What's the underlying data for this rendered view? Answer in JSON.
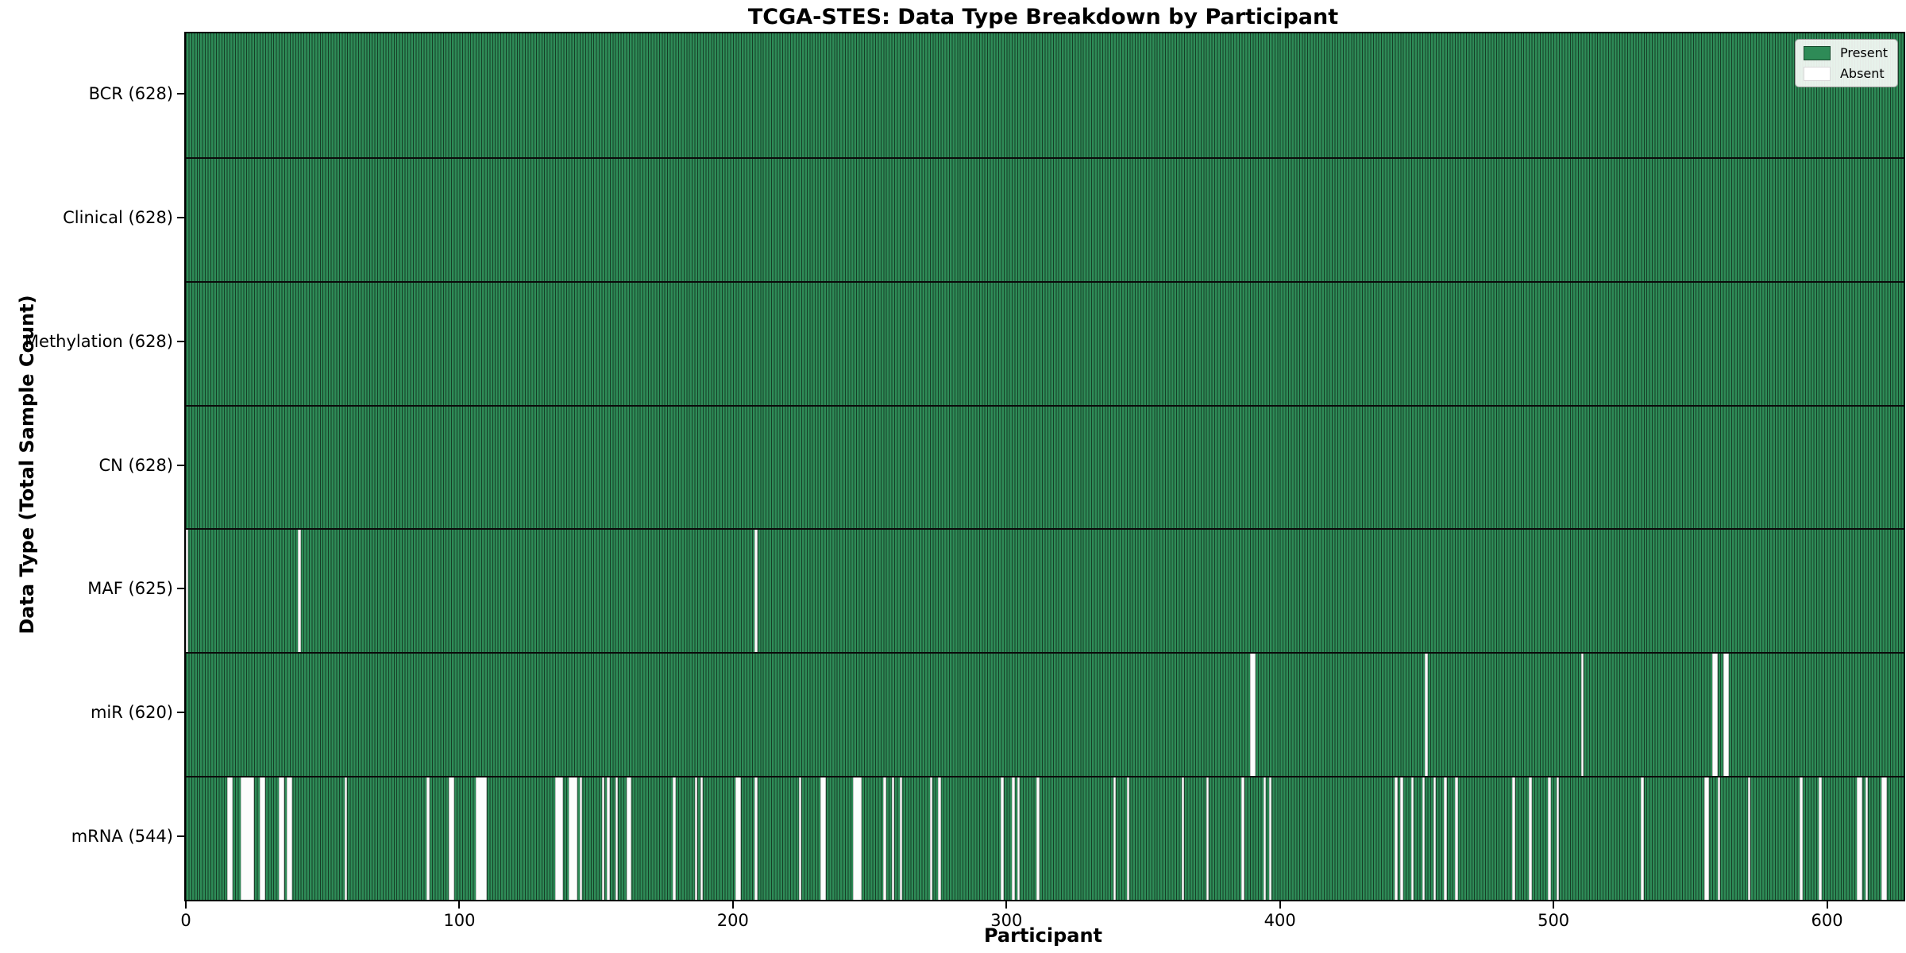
{
  "chart": {
    "title": "TCGA-STES: Data Type Breakdown by Participant",
    "xlabel": "Participant",
    "ylabel": "Data Type (Total Sample Count)",
    "legend": {
      "present": "Present",
      "absent": "Absent"
    }
  },
  "chart_data": {
    "type": "heatmap",
    "title": "TCGA-STES: Data Type Breakdown by Participant",
    "xlabel": "Participant",
    "ylabel": "Data Type (Total Sample Count)",
    "n_participants": 628,
    "x_ticks": [
      0,
      100,
      200,
      300,
      400,
      500,
      600
    ],
    "legend_entries": [
      "Present",
      "Absent"
    ],
    "legend_position": "upper right",
    "grid": false,
    "colors": {
      "present": "#2e8b57",
      "absent": "#fdfdfd",
      "bar_edge": "#163f27",
      "row_separator": "#0b0b0b"
    },
    "rows": [
      {
        "label": "BCR (628)",
        "name": "BCR",
        "present_count": 628,
        "absent_participants": []
      },
      {
        "label": "Clinical (628)",
        "name": "Clinical",
        "present_count": 628,
        "absent_participants": []
      },
      {
        "label": "Methylation (628)",
        "name": "Methylation",
        "present_count": 628,
        "absent_participants": []
      },
      {
        "label": "CN (628)",
        "name": "CN",
        "present_count": 628,
        "absent_participants": []
      },
      {
        "label": "MAF (625)",
        "name": "MAF",
        "present_count": 625,
        "absent_participants": [
          0,
          41,
          208
        ]
      },
      {
        "label": "miR (620)",
        "name": "miR",
        "present_count": 620,
        "absent_participants": [
          389,
          390,
          453,
          510,
          558,
          559,
          562,
          563
        ]
      },
      {
        "label": "mRNA (544)",
        "name": "mRNA",
        "present_count": 544,
        "absent_participants": [
          15,
          16,
          20,
          21,
          22,
          23,
          24,
          27,
          28,
          34,
          35,
          37,
          38,
          58,
          88,
          96,
          97,
          106,
          107,
          108,
          109,
          135,
          136,
          137,
          140,
          141,
          142,
          144,
          152,
          154,
          157,
          161,
          162,
          178,
          186,
          188,
          201,
          202,
          208,
          224,
          232,
          233,
          244,
          245,
          246,
          255,
          258,
          261,
          272,
          275,
          298,
          302,
          304,
          311,
          339,
          344,
          364,
          373,
          386,
          394,
          396,
          442,
          444,
          448,
          452,
          456,
          460,
          464,
          485,
          491,
          498,
          501,
          532,
          555,
          556,
          560,
          571,
          590,
          597,
          611,
          612,
          614,
          620,
          621
        ]
      }
    ]
  }
}
